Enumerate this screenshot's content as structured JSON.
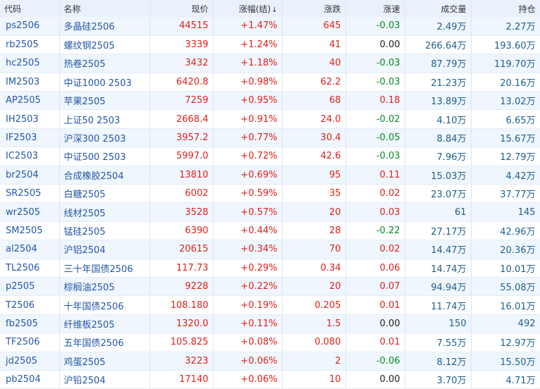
{
  "colors": {
    "up": "#e0201a",
    "down": "#0a8a26",
    "link": "#2456a8",
    "volume": "#1d5f8c",
    "header_bg": "#eaf1fb",
    "row_alt": "#eff6fd"
  },
  "headers": {
    "code": "代码",
    "name": "名称",
    "price": "现价",
    "pct": "涨幅(结)",
    "sort_icon": "↓",
    "chg": "涨跌",
    "speed": "涨速",
    "volume": "成交量",
    "oi": "持仓"
  },
  "rows": [
    {
      "code": "ps2506",
      "name": "多晶硅2506",
      "price": "44515",
      "pct": "+1.47%",
      "chg": "645",
      "speed": "-0.03",
      "speed_dir": "neg",
      "volume": "2.49万",
      "oi": "2.27万"
    },
    {
      "code": "rb2505",
      "name": "螺纹钢2505",
      "price": "3339",
      "pct": "+1.24%",
      "chg": "41",
      "speed": "0.00",
      "speed_dir": "zero",
      "volume": "266.64万",
      "oi": "193.60万"
    },
    {
      "code": "hc2505",
      "name": "热卷2505",
      "price": "3432",
      "pct": "+1.18%",
      "chg": "40",
      "speed": "-0.03",
      "speed_dir": "neg",
      "volume": "87.79万",
      "oi": "119.70万"
    },
    {
      "code": "IM2503",
      "name": "中证1000 2503",
      "price": "6420.8",
      "pct": "+0.98%",
      "chg": "62.2",
      "speed": "-0.03",
      "speed_dir": "neg",
      "volume": "21.23万",
      "oi": "20.16万"
    },
    {
      "code": "AP2505",
      "name": "苹果2505",
      "price": "7259",
      "pct": "+0.95%",
      "chg": "68",
      "speed": "0.18",
      "speed_dir": "pos",
      "volume": "13.89万",
      "oi": "13.02万"
    },
    {
      "code": "IH2503",
      "name": "上证50 2503",
      "price": "2668.4",
      "pct": "+0.91%",
      "chg": "24.0",
      "speed": "-0.02",
      "speed_dir": "neg",
      "volume": "4.10万",
      "oi": "6.65万"
    },
    {
      "code": "IF2503",
      "name": "沪深300 2503",
      "price": "3957.2",
      "pct": "+0.77%",
      "chg": "30.4",
      "speed": "-0.05",
      "speed_dir": "neg",
      "volume": "8.84万",
      "oi": "15.67万"
    },
    {
      "code": "IC2503",
      "name": "中证500 2503",
      "price": "5997.0",
      "pct": "+0.72%",
      "chg": "42.6",
      "speed": "-0.03",
      "speed_dir": "neg",
      "volume": "7.96万",
      "oi": "12.79万"
    },
    {
      "code": "br2504",
      "name": "合成橡胶2504",
      "price": "13810",
      "pct": "+0.69%",
      "chg": "95",
      "speed": "0.11",
      "speed_dir": "pos",
      "volume": "15.03万",
      "oi": "4.42万"
    },
    {
      "code": "SR2505",
      "name": "白糖2505",
      "price": "6002",
      "pct": "+0.59%",
      "chg": "35",
      "speed": "0.02",
      "speed_dir": "pos",
      "volume": "23.07万",
      "oi": "37.77万"
    },
    {
      "code": "wr2505",
      "name": "线材2505",
      "price": "3528",
      "pct": "+0.57%",
      "chg": "20",
      "speed": "0.03",
      "speed_dir": "pos",
      "volume": "61",
      "oi": "145"
    },
    {
      "code": "SM2505",
      "name": "锰硅2505",
      "price": "6390",
      "pct": "+0.44%",
      "chg": "28",
      "speed": "-0.22",
      "speed_dir": "neg",
      "volume": "27.17万",
      "oi": "42.96万"
    },
    {
      "code": "al2504",
      "name": "沪铝2504",
      "price": "20615",
      "pct": "+0.34%",
      "chg": "70",
      "speed": "0.02",
      "speed_dir": "pos",
      "volume": "14.47万",
      "oi": "20.36万"
    },
    {
      "code": "TL2506",
      "name": "三十年国债2506",
      "price": "117.73",
      "pct": "+0.29%",
      "chg": "0.34",
      "speed": "0.06",
      "speed_dir": "pos",
      "volume": "14.74万",
      "oi": "10.01万"
    },
    {
      "code": "p2505",
      "name": "棕榈油2505",
      "price": "9228",
      "pct": "+0.22%",
      "chg": "20",
      "speed": "0.07",
      "speed_dir": "pos",
      "volume": "94.94万",
      "oi": "55.08万"
    },
    {
      "code": "T2506",
      "name": "十年国债2506",
      "price": "108.180",
      "pct": "+0.19%",
      "chg": "0.205",
      "speed": "0.01",
      "speed_dir": "pos",
      "volume": "11.74万",
      "oi": "16.01万"
    },
    {
      "code": "fb2505",
      "name": "纤维板2505",
      "price": "1320.0",
      "pct": "+0.11%",
      "chg": "1.5",
      "speed": "0.00",
      "speed_dir": "zero",
      "volume": "150",
      "oi": "492"
    },
    {
      "code": "TF2506",
      "name": "五年国债2506",
      "price": "105.825",
      "pct": "+0.08%",
      "chg": "0.080",
      "speed": "0.01",
      "speed_dir": "pos",
      "volume": "7.55万",
      "oi": "12.97万"
    },
    {
      "code": "jd2505",
      "name": "鸡蛋2505",
      "price": "3223",
      "pct": "+0.06%",
      "chg": "2",
      "speed": "-0.06",
      "speed_dir": "neg",
      "volume": "8.12万",
      "oi": "15.50万"
    },
    {
      "code": "pb2504",
      "name": "沪铅2504",
      "price": "17140",
      "pct": "+0.06%",
      "chg": "10",
      "speed": "0.00",
      "speed_dir": "zero",
      "volume": "3.70万",
      "oi": "4.71万"
    }
  ]
}
